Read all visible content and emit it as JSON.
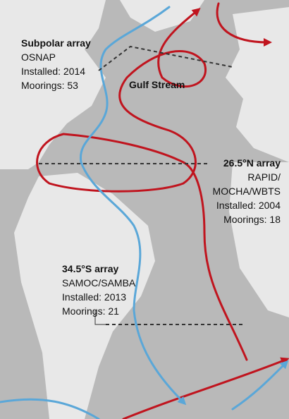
{
  "arrays": [
    {
      "title": "Subpolar array",
      "lines": [
        "OSNAP",
        "Installed: 2014",
        "Moorings: 53"
      ]
    },
    {
      "title": "26.5°N array",
      "lines": [
        "RAPID/",
        "MOCHA/WBTS",
        "Installed: 2004",
        "Moorings: 18"
      ]
    },
    {
      "title": "34.5°S array",
      "lines": [
        "SAMOC/SAMBA",
        "Installed: 2013",
        "Moorings: 21"
      ]
    }
  ],
  "current_label": "Gulf Stream"
}
